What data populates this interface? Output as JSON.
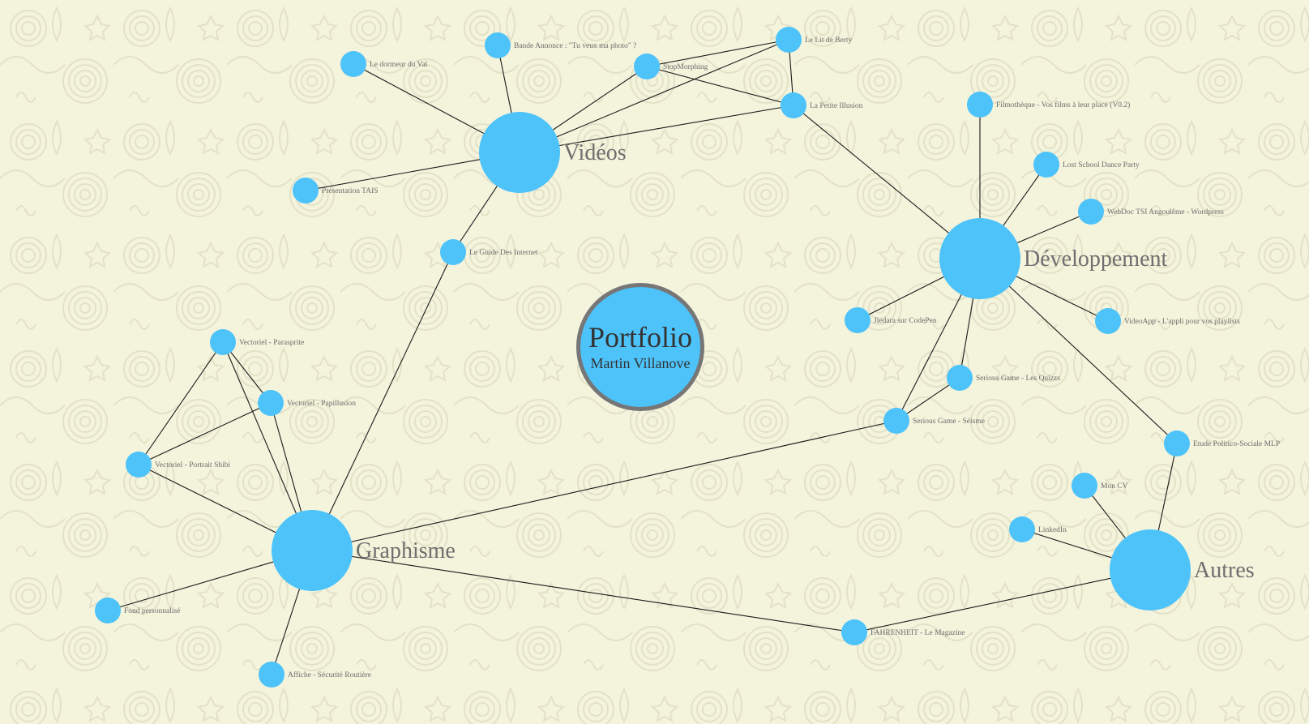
{
  "center": {
    "title": "Portfolio",
    "subtitle": "Martin Villanove"
  },
  "colors": {
    "node": "#4dc3fa",
    "edge": "#1a1a1a",
    "label": "#6d6d6d",
    "background": "#f4f3dc",
    "center_border": "#767676"
  },
  "hubs": [
    {
      "id": "videos",
      "label": "Vidéos"
    },
    {
      "id": "dev",
      "label": "Développement"
    },
    {
      "id": "graph",
      "label": "Graphisme"
    },
    {
      "id": "autres",
      "label": "Autres"
    }
  ],
  "nodes": [
    {
      "id": "dormeur",
      "label": "Le dormeur du Val"
    },
    {
      "id": "bande",
      "label": "Bande Annonce : \"Tu veux ma photo\" ?"
    },
    {
      "id": "stop",
      "label": "StopMorphing"
    },
    {
      "id": "lit",
      "label": "Le Lit de Berty"
    },
    {
      "id": "illusion",
      "label": "La Petite Illusion"
    },
    {
      "id": "tais",
      "label": "Présentation TAIS"
    },
    {
      "id": "guide",
      "label": "Le Guide Des Internet"
    },
    {
      "id": "filmo",
      "label": "Filmothèque - Vos films à leur place (V0.2)"
    },
    {
      "id": "lost",
      "label": "Lost School Dance Party"
    },
    {
      "id": "webdoc",
      "label": "WebDoc TSI Angoulême - Wordpress"
    },
    {
      "id": "jiedara",
      "label": "Jiedara sur CodePen"
    },
    {
      "id": "videoapp",
      "label": "VideoApp - L'appli pour vos playlists"
    },
    {
      "id": "quizz",
      "label": "Serious Game - Les Quizzs"
    },
    {
      "id": "seisme",
      "label": "Serious Game - Séisme"
    },
    {
      "id": "etude",
      "label": "Etude Politico-Sociale MLP"
    },
    {
      "id": "cv",
      "label": "Mon CV"
    },
    {
      "id": "linkedin",
      "label": "LinkedIn"
    },
    {
      "id": "fahr",
      "label": "FAHRENHEIT - Le Magazine"
    },
    {
      "id": "parasprite",
      "label": "Vectoriel - Parasprite"
    },
    {
      "id": "papillusion",
      "label": "Vectoriel - Papillusion"
    },
    {
      "id": "shibi",
      "label": "Vectoriel - Portrait Shibi"
    },
    {
      "id": "fond",
      "label": "Fond personnalisé"
    },
    {
      "id": "affiche",
      "label": "Affiche - Sécurité Routière"
    }
  ],
  "edges": [
    [
      "videos",
      "dormeur"
    ],
    [
      "videos",
      "bande"
    ],
    [
      "videos",
      "stop"
    ],
    [
      "videos",
      "lit"
    ],
    [
      "videos",
      "illusion"
    ],
    [
      "videos",
      "tais"
    ],
    [
      "videos",
      "guide"
    ],
    [
      "stop",
      "lit"
    ],
    [
      "stop",
      "illusion"
    ],
    [
      "lit",
      "illusion"
    ],
    [
      "illusion",
      "dev"
    ],
    [
      "guide",
      "graph"
    ],
    [
      "dev",
      "filmo"
    ],
    [
      "dev",
      "lost"
    ],
    [
      "dev",
      "webdoc"
    ],
    [
      "dev",
      "jiedara"
    ],
    [
      "dev",
      "videoapp"
    ],
    [
      "dev",
      "quizz"
    ],
    [
      "dev",
      "seisme"
    ],
    [
      "dev",
      "etude"
    ],
    [
      "quizz",
      "seisme"
    ],
    [
      "seisme",
      "graph"
    ],
    [
      "autres",
      "etude"
    ],
    [
      "autres",
      "cv"
    ],
    [
      "autres",
      "linkedin"
    ],
    [
      "autres",
      "fahr"
    ],
    [
      "fahr",
      "graph"
    ],
    [
      "graph",
      "parasprite"
    ],
    [
      "graph",
      "papillusion"
    ],
    [
      "graph",
      "shibi"
    ],
    [
      "graph",
      "fond"
    ],
    [
      "graph",
      "affiche"
    ],
    [
      "parasprite",
      "papillusion"
    ],
    [
      "parasprite",
      "shibi"
    ],
    [
      "papillusion",
      "shibi"
    ]
  ]
}
